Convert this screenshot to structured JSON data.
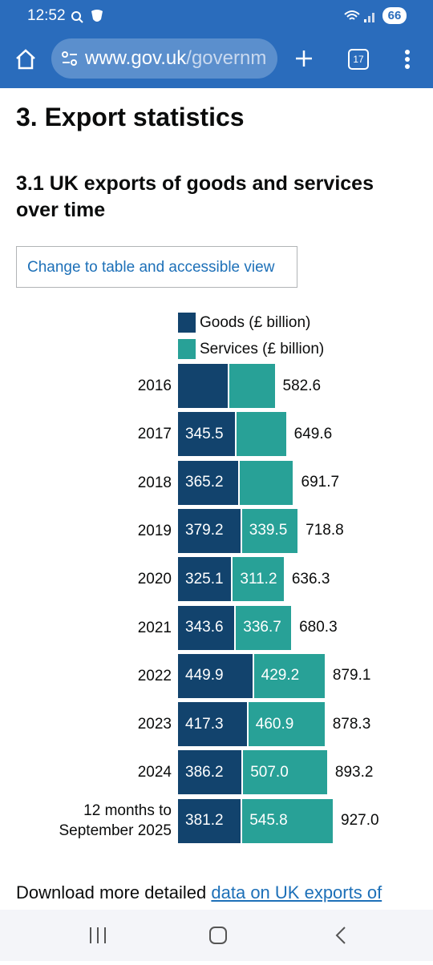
{
  "status_bar": {
    "time": "12:52",
    "battery": "66"
  },
  "browser": {
    "url_host": "www.gov.uk",
    "url_path": "/governm",
    "tab_count": "17"
  },
  "page": {
    "heading": "3. Export statistics",
    "subheading": "3.1 UK exports of goods and services over time",
    "button": "Change to table and accessible view",
    "footer_text": "Download more detailed",
    "footer_link": "data on UK exports of"
  },
  "chart_data": {
    "type": "bar",
    "orientation": "horizontal",
    "stacked": true,
    "categories": [
      "2016",
      "2017",
      "2018",
      "2019",
      "2020",
      "2021",
      "2022",
      "2023",
      "2024",
      "12 months to September 2025"
    ],
    "series": [
      {
        "name": "Goods (£ billion)",
        "color": "#12436d",
        "values": [
          305.0,
          345.5,
          365.2,
          379.2,
          325.1,
          343.6,
          449.9,
          417.3,
          386.2,
          381.2
        ],
        "value_labels": [
          null,
          "345.5",
          "365.2",
          "379.2",
          "325.1",
          "343.6",
          "449.9",
          "417.3",
          "386.2",
          "381.2"
        ]
      },
      {
        "name": "Services (£ billion)",
        "color": "#28a197",
        "values": [
          277.6,
          304.1,
          326.5,
          339.5,
          311.2,
          336.7,
          429.2,
          460.9,
          507.0,
          545.8
        ],
        "value_labels": [
          null,
          null,
          null,
          "339.5",
          "311.2",
          "336.7",
          "429.2",
          "460.9",
          "507.0",
          "545.8"
        ]
      }
    ],
    "totals": {
      "values": [
        582.6,
        649.6,
        691.7,
        718.8,
        636.3,
        680.3,
        879.1,
        878.3,
        893.2,
        927.0
      ],
      "value_labels": [
        "582.6",
        "649.6",
        "691.7",
        "718.8",
        "636.3",
        "680.3",
        "879.1",
        "878.3",
        "893.2",
        "927.0"
      ]
    }
  }
}
